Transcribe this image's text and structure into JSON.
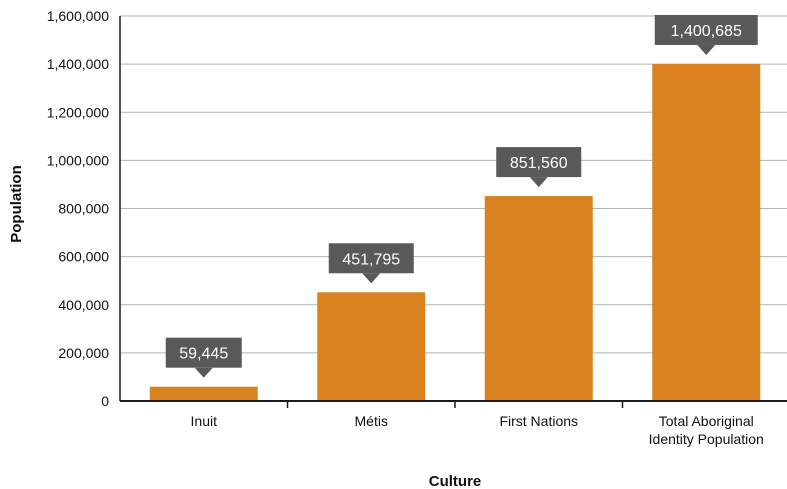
{
  "chart_data": {
    "type": "bar",
    "categories": [
      "Inuit",
      "Métis",
      "First Nations",
      "Total Aboriginal Identity Population"
    ],
    "category_lines": [
      [
        "Inuit"
      ],
      [
        "Métis"
      ],
      [
        "First Nations"
      ],
      [
        "Total Aboriginal",
        "Identity Population"
      ]
    ],
    "values": [
      59445,
      451795,
      851560,
      1400685
    ],
    "data_labels": [
      "59,445",
      "451,795",
      "851,560",
      "1,400,685"
    ],
    "xlabel": "Culture",
    "ylabel": "Population",
    "ylim": [
      0,
      1600000
    ],
    "yticks": [
      0,
      200000,
      400000,
      600000,
      800000,
      1000000,
      1200000,
      1400000,
      1600000
    ],
    "ytick_labels": [
      "0",
      "200,000",
      "400,000",
      "600,000",
      "800,000",
      "1,000,000",
      "1,200,000",
      "1,400,000",
      "1,600,000"
    ],
    "grid": true,
    "legend": "none",
    "colors": {
      "bar": "#d9821f",
      "label_box": "#595959",
      "label_text": "#ffffff",
      "grid": "#b3b3b3",
      "axis": "#1a1a1a"
    }
  }
}
